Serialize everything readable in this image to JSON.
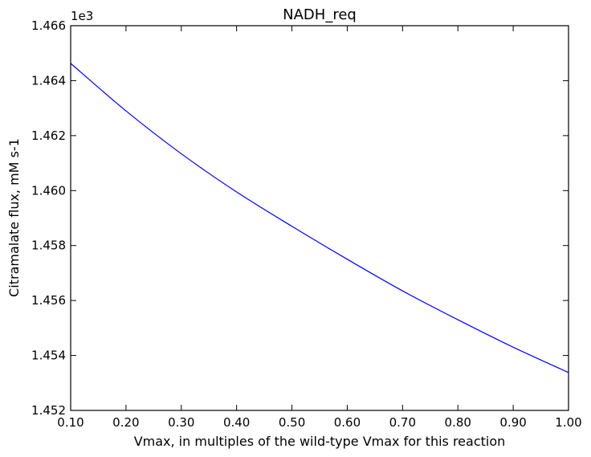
{
  "chart_data": {
    "type": "line",
    "title": "NADH_req",
    "xlabel": "Vmax, in multiples of the wild-type Vmax for this reaction",
    "ylabel": "Citramalate flux, mM s-1",
    "y_offset_text": "1e3",
    "xlim": [
      0.1,
      1.0
    ],
    "ylim": [
      1452,
      1466
    ],
    "x_ticks": [
      0.1,
      0.2,
      0.3,
      0.4,
      0.5,
      0.6,
      0.7,
      0.8,
      0.9,
      1.0
    ],
    "x_tick_labels": [
      "0.10",
      "0.20",
      "0.30",
      "0.40",
      "0.50",
      "0.60",
      "0.70",
      "0.80",
      "0.90",
      "1.00"
    ],
    "y_ticks": [
      1452,
      1454,
      1456,
      1458,
      1460,
      1462,
      1464,
      1466
    ],
    "y_tick_labels": [
      "1.452",
      "1.454",
      "1.456",
      "1.458",
      "1.460",
      "1.462",
      "1.464",
      "1.466"
    ],
    "grid": false,
    "series": [
      {
        "color": "#0000ff",
        "x": [
          0.1,
          0.2,
          0.3,
          0.4,
          0.5,
          0.6,
          0.7,
          0.8,
          0.9,
          1.0
        ],
        "y": [
          1464.63,
          1462.9,
          1461.34,
          1459.95,
          1458.7,
          1457.5,
          1456.35,
          1455.3,
          1454.3,
          1453.38
        ]
      }
    ]
  }
}
